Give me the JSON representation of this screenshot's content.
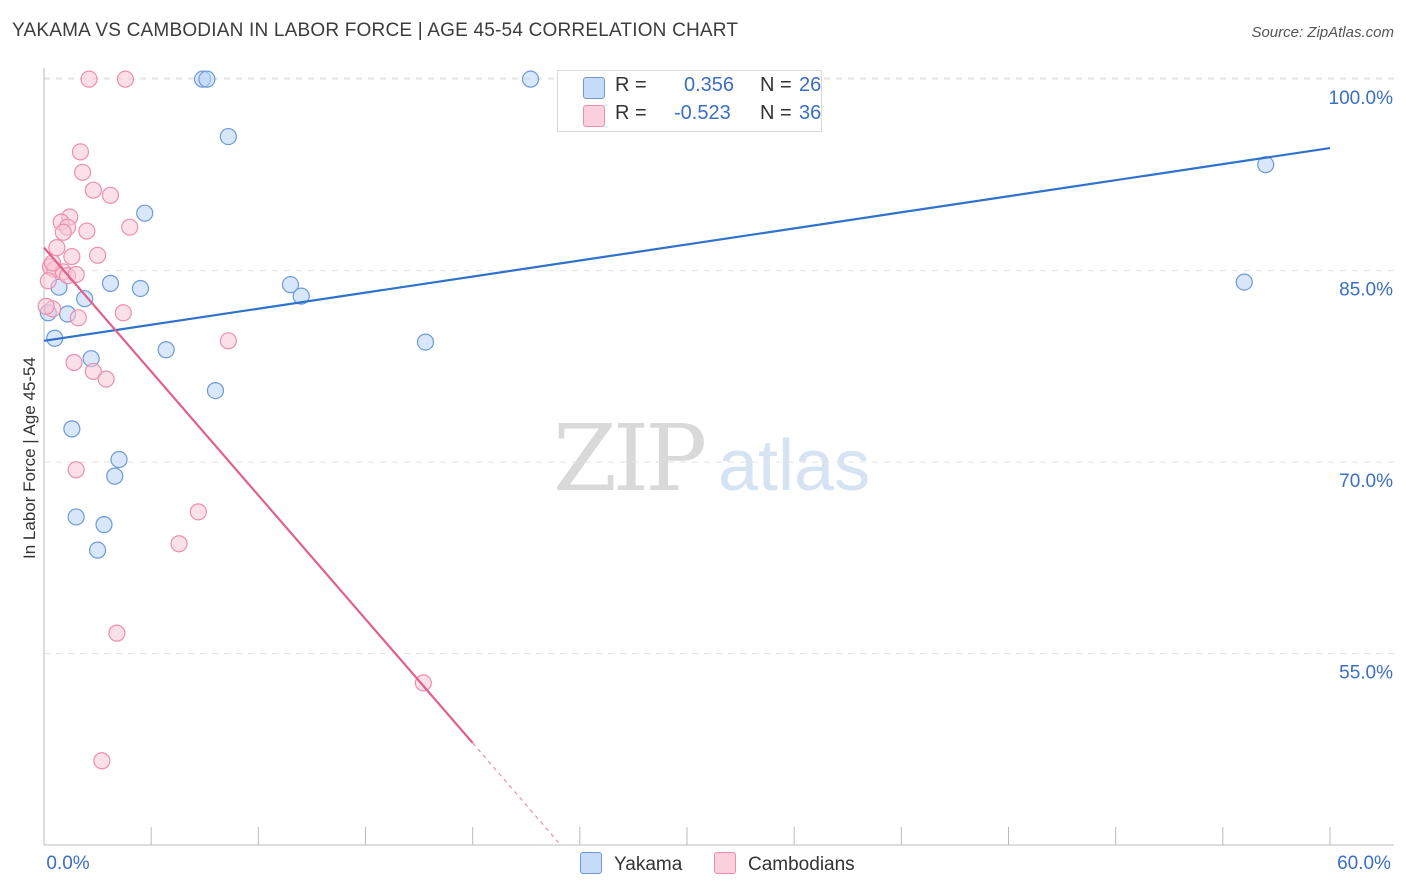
{
  "title": "YAKAMA VS CAMBODIAN IN LABOR FORCE | AGE 45-54 CORRELATION CHART",
  "source": "Source: ZipAtlas.com",
  "watermark": {
    "zip": "ZIP",
    "atlas": "atlas"
  },
  "legend": {
    "yakama": {
      "r_label": "R =",
      "r_value": "0.356",
      "n_label": "N =",
      "n_value": "26"
    },
    "cambodians": {
      "r_label": "R =",
      "r_value": "-0.523",
      "n_label": "N =",
      "n_value": "36"
    }
  },
  "colors": {
    "yakama_fill": "#b8d3f5",
    "yakama_stroke": "#6c9bd8",
    "yakama_line": "#2f72cc",
    "cambodian_fill": "#f9c6d6",
    "cambodian_stroke": "#ec8fae",
    "cambodian_line": "#e0608e",
    "axis_label": "#3a6fc4",
    "grid": "#e3e3e3"
  },
  "chart_data": {
    "type": "scatter",
    "title": "YAKAMA VS CAMBODIAN IN LABOR FORCE | AGE 45-54 CORRELATION CHART",
    "xlabel": "",
    "ylabel": "In Labor Force | Age 45-54",
    "xlim": [
      0,
      60
    ],
    "ylim": [
      40,
      101.5
    ],
    "x_tick_labels": [
      {
        "value": 0,
        "label": "0.0%"
      },
      {
        "value": 60,
        "label": "60.0%"
      }
    ],
    "y_tick_labels": [
      {
        "value": 100,
        "label": "100.0%"
      },
      {
        "value": 85,
        "label": "85.0%"
      },
      {
        "value": 70,
        "label": "70.0%"
      },
      {
        "value": 55,
        "label": "55.0%"
      }
    ],
    "grid": true,
    "series": [
      {
        "name": "Yakama",
        "points": [
          [
            7.4,
            100
          ],
          [
            7.6,
            100
          ],
          [
            22.7,
            100
          ],
          [
            8.6,
            95.5
          ],
          [
            4.7,
            89.5
          ],
          [
            57.0,
            93.3
          ],
          [
            3.1,
            84.0
          ],
          [
            4.5,
            83.6
          ],
          [
            11.5,
            83.9
          ],
          [
            12.0,
            83.0
          ],
          [
            1.9,
            82.8
          ],
          [
            0.7,
            83.7
          ],
          [
            1.1,
            81.6
          ],
          [
            0.2,
            81.7
          ],
          [
            0.5,
            79.7
          ],
          [
            5.7,
            78.8
          ],
          [
            17.8,
            79.4
          ],
          [
            56.0,
            84.1
          ],
          [
            2.2,
            78.1
          ],
          [
            8.0,
            75.6
          ],
          [
            1.3,
            72.6
          ],
          [
            3.5,
            70.2
          ],
          [
            3.3,
            68.9
          ],
          [
            1.5,
            65.7
          ],
          [
            2.8,
            65.1
          ],
          [
            2.5,
            63.1
          ]
        ],
        "trend": {
          "x0": 0,
          "y0": 79.5,
          "x1": 60,
          "y1": 94.6
        }
      },
      {
        "name": "Cambodians",
        "points": [
          [
            2.1,
            100
          ],
          [
            3.8,
            100
          ],
          [
            1.7,
            94.3
          ],
          [
            1.8,
            92.7
          ],
          [
            2.3,
            91.3
          ],
          [
            3.1,
            90.9
          ],
          [
            1.2,
            89.2
          ],
          [
            0.8,
            88.8
          ],
          [
            1.1,
            88.4
          ],
          [
            0.9,
            88.0
          ],
          [
            2.0,
            88.1
          ],
          [
            4.0,
            88.4
          ],
          [
            0.6,
            86.8
          ],
          [
            2.5,
            86.2
          ],
          [
            1.3,
            86.1
          ],
          [
            0.3,
            85.3
          ],
          [
            0.5,
            85.1
          ],
          [
            0.9,
            84.9
          ],
          [
            1.1,
            84.6
          ],
          [
            1.5,
            84.7
          ],
          [
            0.2,
            84.2
          ],
          [
            0.4,
            82.0
          ],
          [
            1.6,
            81.3
          ],
          [
            3.7,
            81.7
          ],
          [
            8.6,
            79.5
          ],
          [
            1.4,
            77.8
          ],
          [
            2.3,
            77.1
          ],
          [
            2.9,
            76.5
          ],
          [
            1.5,
            69.4
          ],
          [
            7.2,
            66.1
          ],
          [
            6.3,
            63.6
          ],
          [
            3.4,
            56.6
          ],
          [
            17.7,
            52.7
          ],
          [
            2.7,
            46.6
          ],
          [
            0.1,
            82.2
          ],
          [
            0.4,
            85.6
          ]
        ],
        "trend": {
          "x0": 0,
          "y0": 86.8,
          "x1": 20,
          "y1": 48.0
        },
        "trend_dashed": {
          "x0": 20,
          "y0": 48.0,
          "x1": 24,
          "y1": 40.2
        }
      }
    ]
  },
  "bottom_legend": {
    "yakama": "Yakama",
    "cambodians": "Cambodians"
  }
}
